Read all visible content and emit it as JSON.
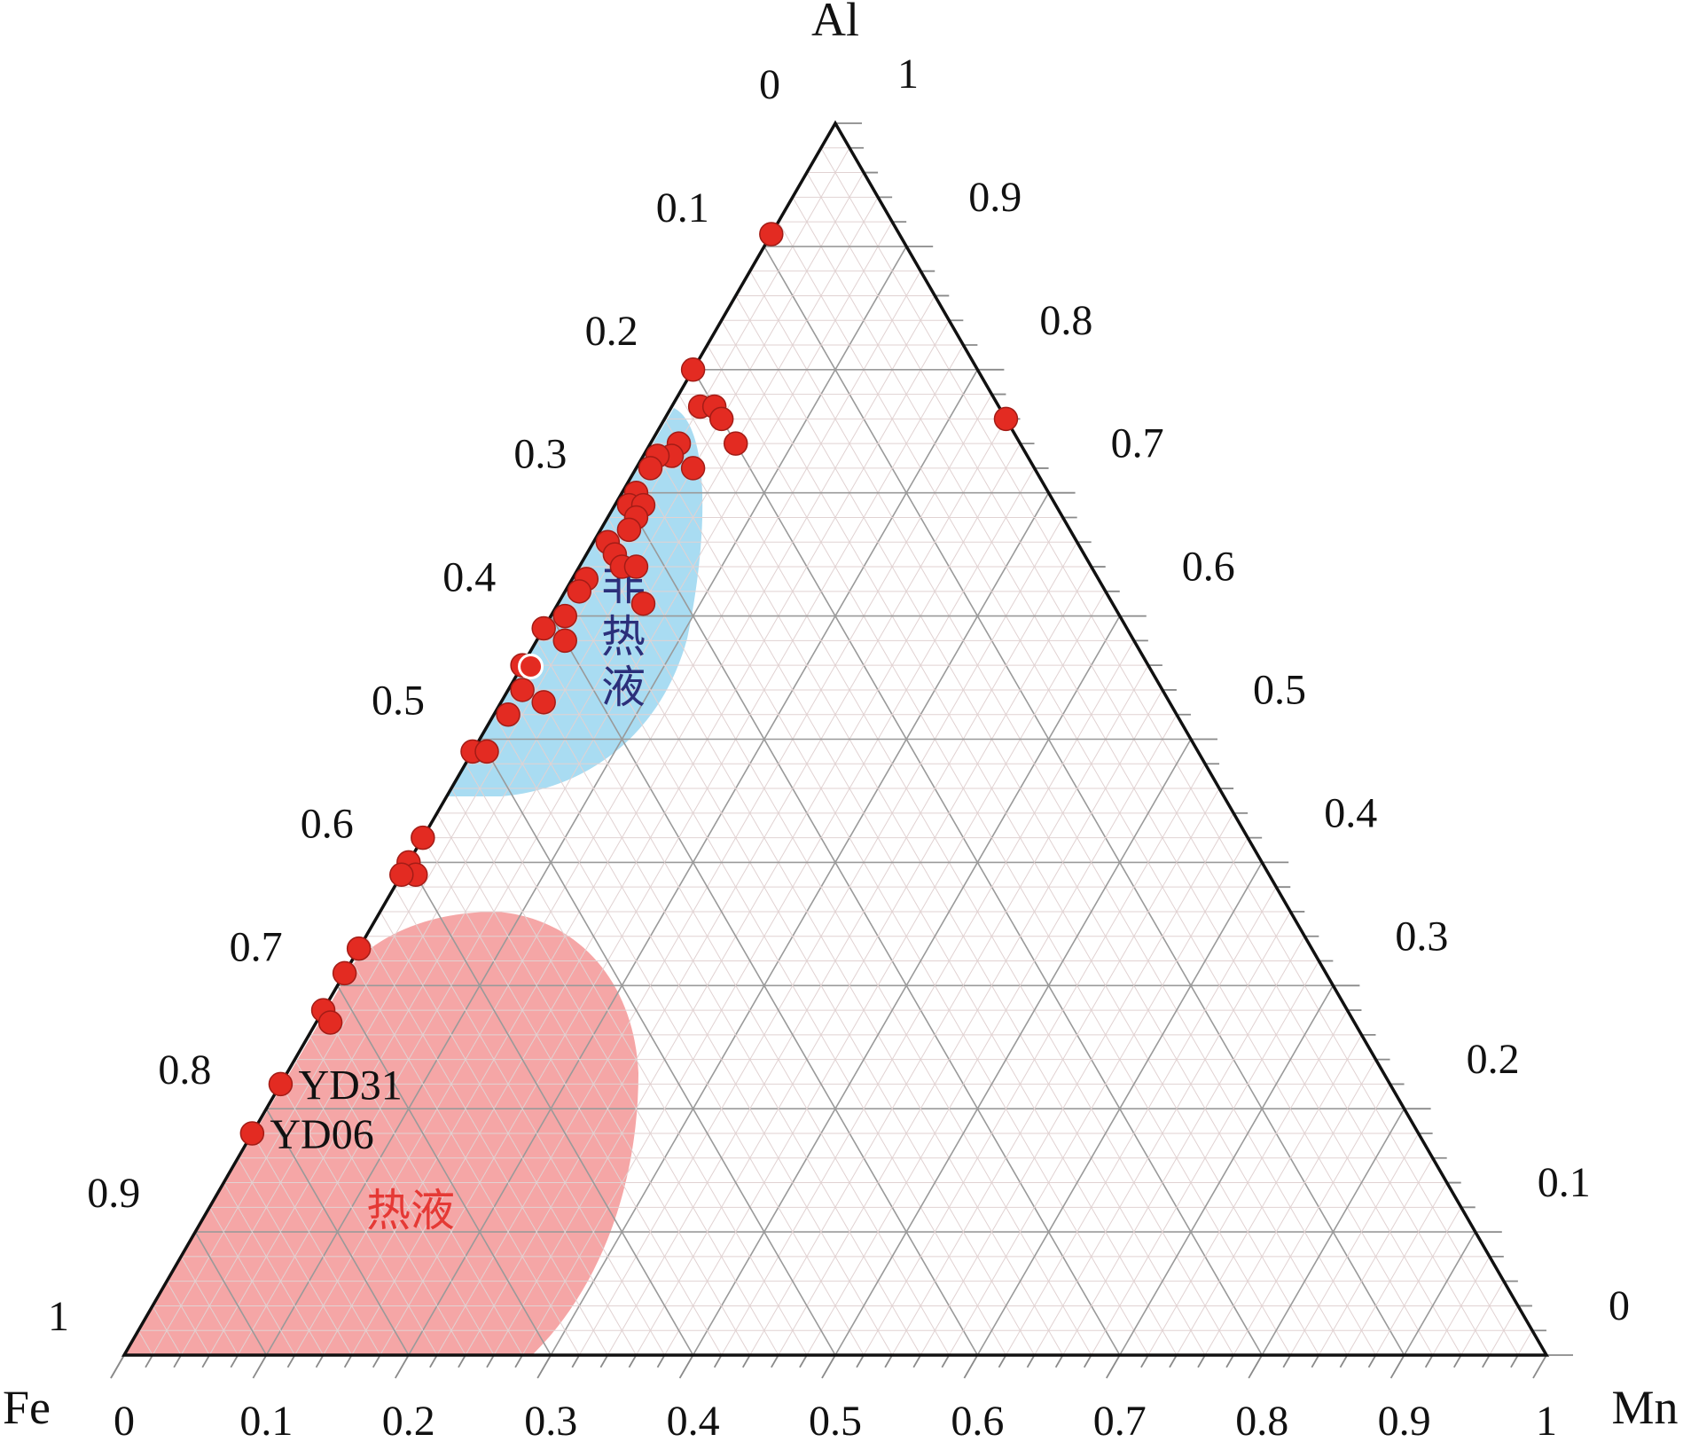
{
  "chart_data": {
    "type": "ternary-scatter",
    "apex_labels": {
      "top": "Al",
      "left": "Fe",
      "right": "Mn"
    },
    "ticks": {
      "left": [
        "0",
        "0.1",
        "0.2",
        "0.3",
        "0.4",
        "0.5",
        "0.6",
        "0.7",
        "0.8",
        "0.9",
        "1"
      ],
      "bottom": [
        "0",
        "0.1",
        "0.2",
        "0.3",
        "0.4",
        "0.5",
        "0.6",
        "0.7",
        "0.8",
        "0.9",
        "1"
      ],
      "right": [
        "1",
        "0.9",
        "0.8",
        "0.7",
        "0.6",
        "0.5",
        "0.4",
        "0.3",
        "0.2",
        "0.1",
        "0"
      ]
    },
    "grid": true,
    "regions": [
      {
        "label_chars": [
          "非",
          "热",
          "液"
        ],
        "fill": "#a9dcf2",
        "text_color": "#2b2f7a"
      },
      {
        "label_chars": [
          "热液"
        ],
        "fill": "#f5a6a6",
        "text_color": "#e53935"
      }
    ],
    "points": [
      {
        "fe": 0.09,
        "al": 0.91,
        "mn": 0.0
      },
      {
        "fe": 0.2,
        "al": 0.8,
        "mn": 0.0
      },
      {
        "fe": 0.21,
        "al": 0.77,
        "mn": 0.02
      },
      {
        "fe": 0.2,
        "al": 0.77,
        "mn": 0.03
      },
      {
        "fe": 0.2,
        "al": 0.76,
        "mn": 0.04
      },
      {
        "fe": 0.24,
        "al": 0.74,
        "mn": 0.02
      },
      {
        "fe": 0.25,
        "al": 0.73,
        "mn": 0.02
      },
      {
        "fe": 0.26,
        "al": 0.73,
        "mn": 0.01
      },
      {
        "fe": 0.24,
        "al": 0.72,
        "mn": 0.04
      },
      {
        "fe": 0.27,
        "al": 0.72,
        "mn": 0.01
      },
      {
        "fe": 0.29,
        "al": 0.7,
        "mn": 0.01
      },
      {
        "fe": 0.3,
        "al": 0.69,
        "mn": 0.01
      },
      {
        "fe": 0.29,
        "al": 0.69,
        "mn": 0.02
      },
      {
        "fe": 0.3,
        "al": 0.68,
        "mn": 0.02
      },
      {
        "fe": 0.31,
        "al": 0.67,
        "mn": 0.02
      },
      {
        "fe": 0.33,
        "al": 0.66,
        "mn": 0.01
      },
      {
        "fe": 0.33,
        "al": 0.65,
        "mn": 0.02
      },
      {
        "fe": 0.33,
        "al": 0.64,
        "mn": 0.03
      },
      {
        "fe": 0.32,
        "al": 0.64,
        "mn": 0.04
      },
      {
        "fe": 0.33,
        "al": 0.61,
        "mn": 0.06
      },
      {
        "fe": 0.36,
        "al": 0.63,
        "mn": 0.01
      },
      {
        "fe": 0.37,
        "al": 0.62,
        "mn": 0.01
      },
      {
        "fe": 0.39,
        "al": 0.6,
        "mn": 0.01
      },
      {
        "fe": 0.4,
        "al": 0.58,
        "mn": 0.02
      },
      {
        "fe": 0.41,
        "al": 0.59,
        "mn": 0.0
      },
      {
        "fe": 0.44,
        "al": 0.56,
        "mn": 0.0
      },
      {
        "fe": 0.45,
        "al": 0.54,
        "mn": 0.01
      },
      {
        "fe": 0.44,
        "al": 0.53,
        "mn": 0.03
      },
      {
        "fe": 0.47,
        "al": 0.52,
        "mn": 0.01
      },
      {
        "fe": 0.51,
        "al": 0.49,
        "mn": 0.0
      },
      {
        "fe": 0.5,
        "al": 0.49,
        "mn": 0.01
      },
      {
        "fe": 0.58,
        "al": 0.42,
        "mn": 0.0
      },
      {
        "fe": 0.6,
        "al": 0.4,
        "mn": 0.0
      },
      {
        "fe": 0.6,
        "al": 0.39,
        "mn": 0.01
      },
      {
        "fe": 0.61,
        "al": 0.39,
        "mn": 0.0
      },
      {
        "fe": 0.67,
        "al": 0.33,
        "mn": 0.0
      },
      {
        "fe": 0.69,
        "al": 0.31,
        "mn": 0.0
      },
      {
        "fe": 0.72,
        "al": 0.28,
        "mn": 0.0
      },
      {
        "fe": 0.72,
        "al": 0.27,
        "mn": 0.01
      },
      {
        "fe": 0.78,
        "al": 0.22,
        "mn": 0.0,
        "label": "YD31"
      },
      {
        "fe": 0.82,
        "al": 0.18,
        "mn": 0.0,
        "label": "YD06"
      },
      {
        "fe": 0.2,
        "al": 0.74,
        "mn": 0.06
      },
      {
        "fe": 0.0,
        "al": 0.76,
        "mn": 0.24
      },
      {
        "fe": 0.44,
        "al": 0.57,
        "mn": 0.0,
        "highlight": true
      }
    ]
  }
}
